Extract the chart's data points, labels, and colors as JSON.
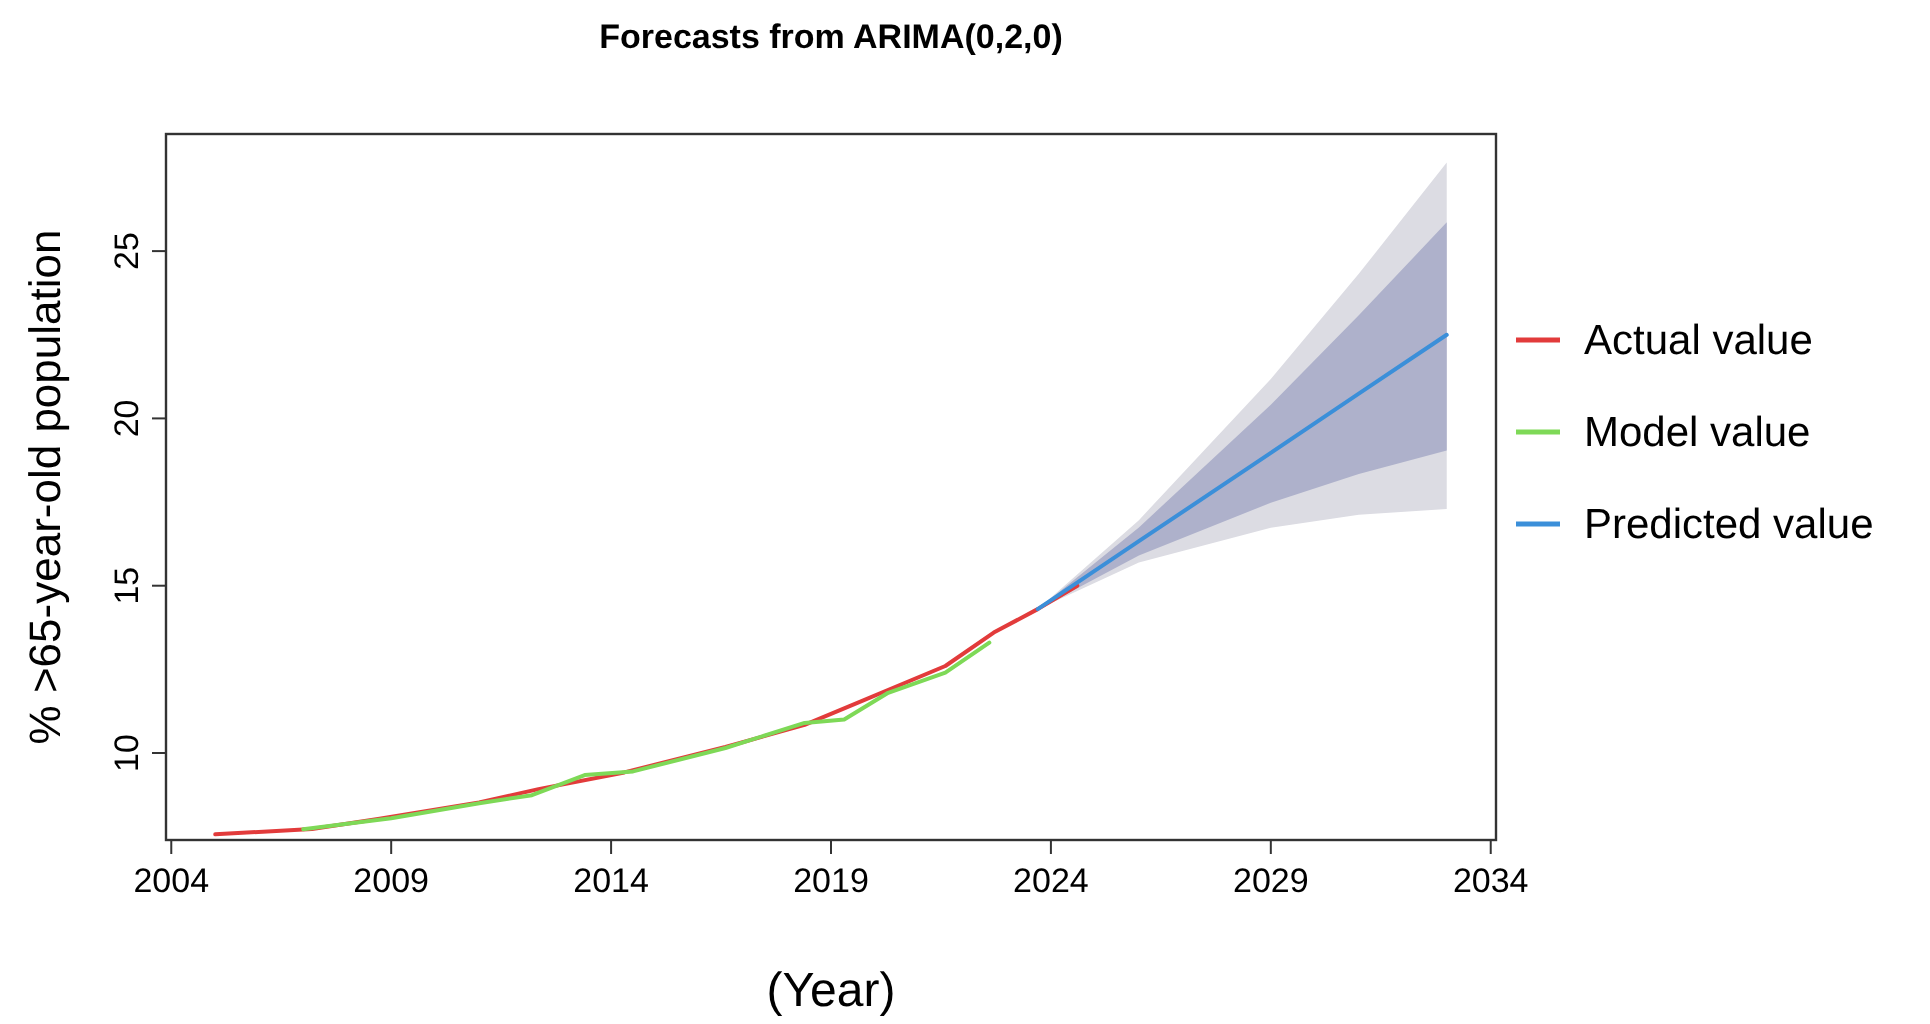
{
  "chart_data": {
    "type": "line",
    "title": "Forecasts from ARIMA(0,2,0)",
    "xlabel": "(Year)",
    "ylabel": "% >65-year-old population",
    "xlim": [
      2003.88,
      2034.12
    ],
    "xticks": [
      2004,
      2009,
      2014,
      2019,
      2024,
      2029,
      2034
    ],
    "ylim": [
      7.4,
      28.5
    ],
    "yticks": [
      10,
      15,
      20,
      25
    ],
    "grid": false,
    "legend": "right",
    "line_style": "solid",
    "marker": "none",
    "series": [
      {
        "type": "area",
        "color": "#dcdce3",
        "x": [
          2023.7,
          2026,
          2029,
          2031,
          2033
        ],
        "values": [
          null,
          null,
          null,
          null,
          null
        ],
        "lower": [
          14.3,
          15.69,
          16.73,
          17.12,
          17.29
        ],
        "upper": [
          14.3,
          16.96,
          21.18,
          24.32,
          27.65
        ]
      },
      {
        "type": "area",
        "color": "#aeb1cb",
        "x": [
          2023.7,
          2026,
          2029,
          2031,
          2033
        ],
        "values": [
          null,
          null,
          null,
          null,
          null
        ],
        "lower": [
          14.3,
          15.9,
          17.48,
          18.34,
          19.04
        ],
        "upper": [
          14.3,
          16.74,
          20.41,
          23.08,
          25.86
        ]
      },
      {
        "name": "Actual value",
        "color": "#e23b3b",
        "x": [
          2005,
          2007.2,
          2008.7,
          2011,
          2012.35,
          2014.3,
          2016.6,
          2018.4,
          2019.6,
          2021.6,
          2022.7,
          2023.7,
          2024.6
        ],
        "values": [
          7.57,
          7.73,
          8.03,
          8.52,
          8.92,
          9.42,
          10.18,
          10.84,
          11.5,
          12.6,
          13.6,
          14.3,
          15.0
        ]
      },
      {
        "name": "Model value",
        "color": "#7ed957",
        "x": [
          2007,
          2009,
          2011,
          2012.2,
          2013.4,
          2014.5,
          2016.6,
          2018.4,
          2019.3,
          2020.3,
          2021.6,
          2022.6
        ],
        "values": [
          7.72,
          8.05,
          8.5,
          8.74,
          9.34,
          9.45,
          10.15,
          10.9,
          11.0,
          11.8,
          12.4,
          13.3
        ]
      },
      {
        "name": "Predicted value",
        "color": "#3b8fd9",
        "x": [
          2023.7,
          2026,
          2029,
          2031,
          2033
        ],
        "values": [
          14.3,
          16.33,
          18.97,
          20.74,
          22.5
        ]
      }
    ]
  }
}
